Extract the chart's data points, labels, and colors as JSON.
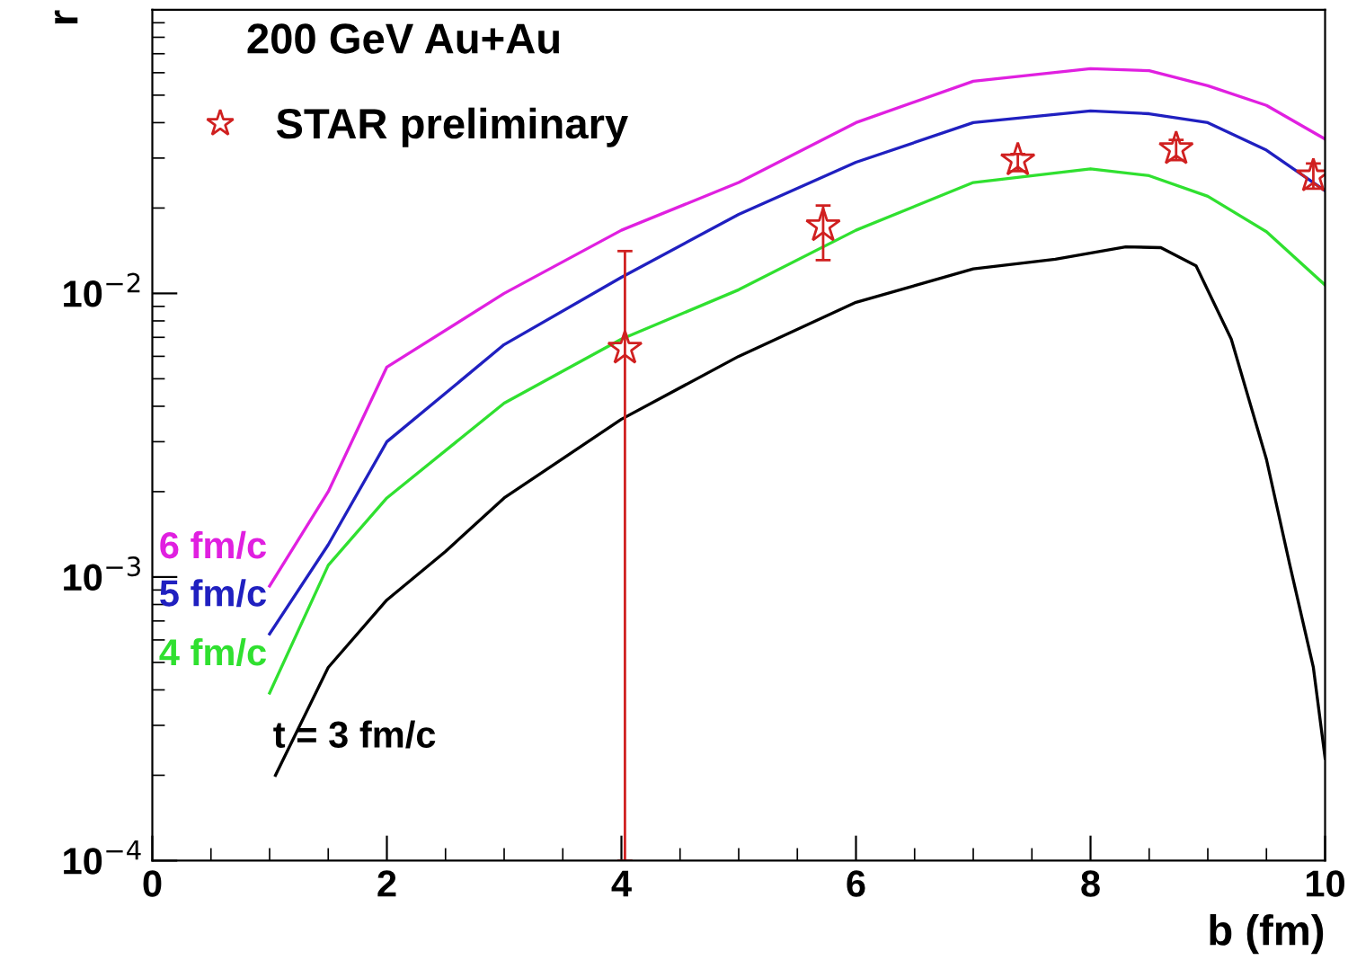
{
  "chart_data": {
    "type": "line",
    "xlabel": "b (fm)",
    "ylabel": "r",
    "log": "y",
    "grid": false,
    "legend": "top left",
    "marker": "none",
    "line_style": "solid",
    "annotations": [
      "200 GeV Au+Au"
    ],
    "xlim": [
      0,
      10
    ],
    "xticks": [
      0,
      2,
      4,
      6,
      8,
      10
    ],
    "ylim": [
      0.0001,
      0.1
    ],
    "yticks": [
      {
        "value": 0.0001,
        "label": "10$^{−4}$"
      },
      {
        "value": 0.001,
        "label": "10$^{−3}$"
      },
      {
        "value": 0.01,
        "label": "10$^{−2}$"
      }
    ],
    "series": [
      {
        "name": "6 fm/c",
        "color": "#e020e0",
        "x": [
          1,
          1.5,
          2,
          3,
          4,
          5,
          6,
          7,
          8,
          8.5,
          9,
          9.5,
          10
        ],
        "values": [
          0.00093,
          0.002,
          0.0055,
          0.01,
          0.0167,
          0.0246,
          0.04,
          0.056,
          0.062,
          0.061,
          0.054,
          0.046,
          0.035
        ]
      },
      {
        "name": "5 fm/c",
        "color": "#2020c0",
        "x": [
          1,
          1.5,
          2,
          3,
          4,
          5,
          6,
          7,
          8,
          8.5,
          9,
          9.5,
          10
        ],
        "values": [
          0.00063,
          0.0013,
          0.003,
          0.0066,
          0.0114,
          0.019,
          0.029,
          0.04,
          0.044,
          0.043,
          0.04,
          0.032,
          0.023
        ]
      },
      {
        "name": "4 fm/c",
        "color": "#30e030",
        "x": [
          1,
          1.5,
          2,
          3,
          4,
          5,
          6,
          7,
          8,
          8.5,
          9,
          9.5,
          10
        ],
        "values": [
          0.00039,
          0.0011,
          0.0019,
          0.0041,
          0.0069,
          0.0103,
          0.0167,
          0.0246,
          0.0275,
          0.026,
          0.022,
          0.0165,
          0.0107
        ]
      },
      {
        "name": "t = 3 fm/c",
        "color": "#000000",
        "x": [
          1.05,
          1.5,
          2,
          2.5,
          3,
          4,
          5,
          6,
          7,
          7.7,
          8.3,
          8.6,
          8.9,
          9.2,
          9.5,
          9.7,
          9.9,
          10
        ],
        "values": [
          0.0002,
          0.00048,
          0.00083,
          0.00123,
          0.0019,
          0.0036,
          0.006,
          0.0093,
          0.0122,
          0.0132,
          0.0146,
          0.0145,
          0.0125,
          0.0069,
          0.0026,
          0.0011,
          0.00048,
          0.00023
        ]
      },
      {
        "name": "STAR preliminary",
        "type": "scatter",
        "marker": "star",
        "color": "#d02020",
        "x": [
          4.03,
          5.72,
          7.38,
          8.73,
          9.9
        ],
        "values": [
          0.0064,
          0.0173,
          0.0295,
          0.0323,
          0.0259
        ],
        "errors": [
          [
            0.0001,
            0.0141
          ],
          [
            0.0131,
            0.0204
          ],
          [
            0.027,
            0.031
          ],
          [
            0.0295,
            0.0348
          ],
          [
            0.0234,
            0.0287
          ]
        ]
      }
    ]
  }
}
